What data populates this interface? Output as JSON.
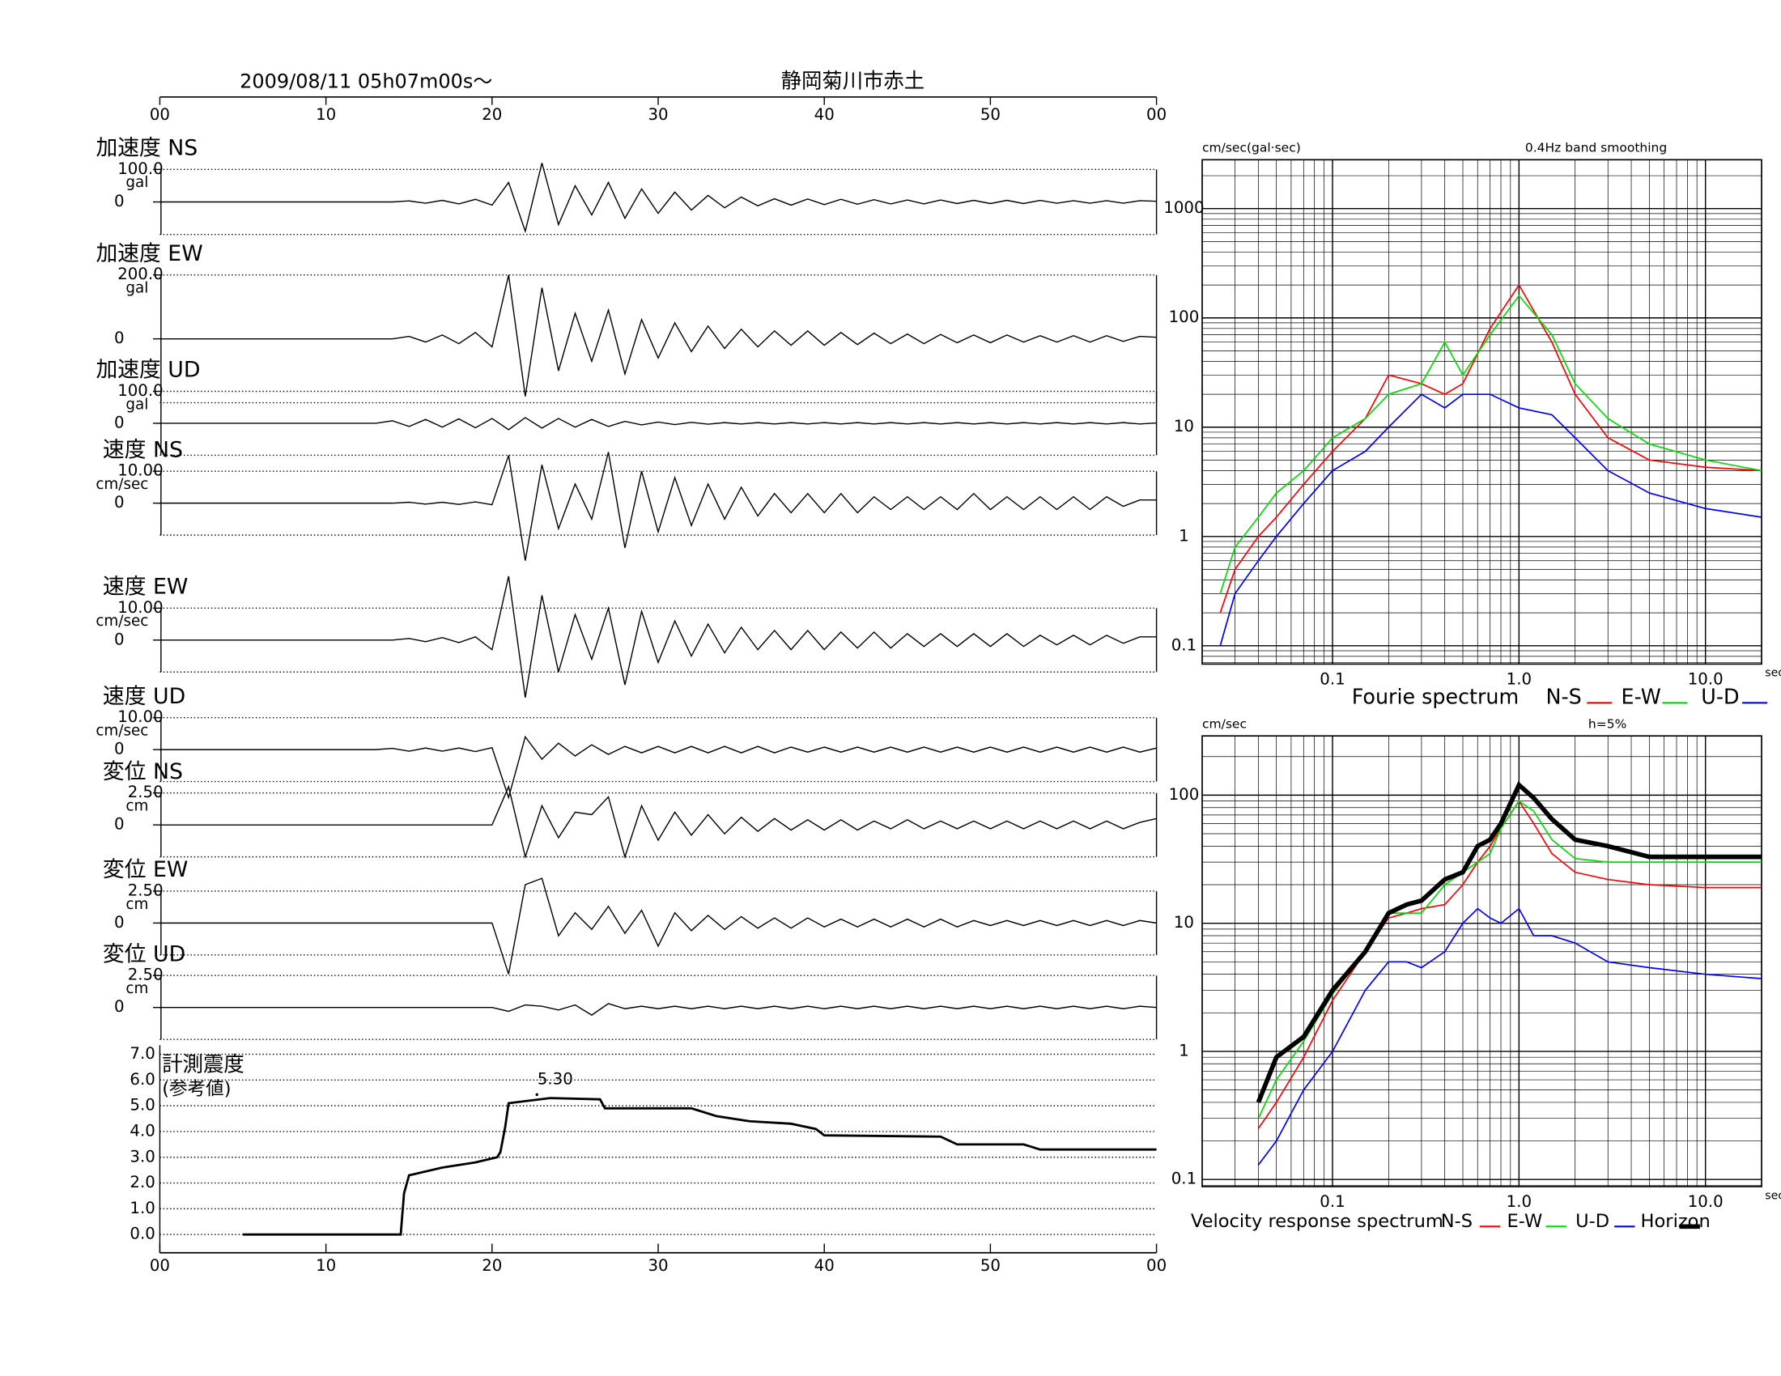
{
  "chart_data": [
    {
      "type": "waveform",
      "title": "2009/08/11  05h07m00s〜",
      "subtitle": "静岡菊川市赤土",
      "xlim": [
        0,
        60
      ],
      "xticks": [
        {
          "value": 0,
          "label": "00"
        },
        10,
        20,
        30,
        40,
        50,
        {
          "value": 60,
          "label": "00"
        }
      ],
      "x": [
        0,
        1,
        2,
        3,
        4,
        5,
        6,
        7,
        8,
        9,
        10,
        11,
        12,
        13,
        14,
        15,
        16,
        17,
        18,
        19,
        20,
        21,
        22,
        23,
        24,
        25,
        26,
        27,
        28,
        29,
        30,
        31,
        32,
        33,
        34,
        35,
        36,
        37,
        38,
        39,
        40,
        41,
        42,
        43,
        44,
        45,
        46,
        47,
        48,
        49,
        50,
        51,
        52,
        53,
        54,
        55,
        56,
        57,
        58,
        59,
        60
      ],
      "series": [
        {
          "name": "加速度 NS",
          "unit": "gal",
          "ylim": [
            -100,
            100
          ],
          "yticks": [
            {
              "value": 100,
              "label": "100.0"
            },
            0
          ],
          "values": [
            0,
            0,
            0,
            0,
            0,
            0,
            0,
            0,
            0,
            0,
            0,
            0,
            0,
            0,
            0,
            3,
            -4,
            5,
            -6,
            8,
            -10,
            60,
            -90,
            120,
            -70,
            50,
            -40,
            60,
            -50,
            40,
            -35,
            30,
            -25,
            20,
            -18,
            15,
            -12,
            10,
            -10,
            9,
            -8,
            8,
            -7,
            7,
            -6,
            6,
            -6,
            6,
            -5,
            5,
            -5,
            5,
            -5,
            5,
            -4,
            4,
            -4,
            4,
            -4,
            4,
            2
          ]
        },
        {
          "name": "加速度 EW",
          "unit": "gal",
          "ylim": [
            -200,
            200
          ],
          "yticks": [
            {
              "value": 200,
              "label": "200.0"
            },
            0
          ],
          "values": [
            0,
            0,
            0,
            0,
            0,
            0,
            0,
            0,
            0,
            0,
            0,
            0,
            0,
            0,
            0,
            8,
            -10,
            12,
            -15,
            20,
            -25,
            200,
            -180,
            160,
            -100,
            80,
            -70,
            90,
            -110,
            60,
            -60,
            50,
            -40,
            40,
            -30,
            30,
            -25,
            25,
            -20,
            25,
            -20,
            20,
            -18,
            18,
            -15,
            15,
            -15,
            14,
            -12,
            12,
            -12,
            12,
            -10,
            10,
            -10,
            10,
            -10,
            10,
            -8,
            8,
            5
          ]
        },
        {
          "name": "加速度 UD",
          "unit": "gal",
          "ylim": [
            -100,
            100
          ],
          "yticks": [
            {
              "value": 100,
              "label": "100.0"
            },
            0
          ],
          "values": [
            0,
            0,
            0,
            0,
            0,
            0,
            0,
            0,
            0,
            0,
            0,
            0,
            0,
            0,
            8,
            -10,
            12,
            -12,
            14,
            -14,
            15,
            -20,
            18,
            -15,
            15,
            -12,
            12,
            -10,
            6,
            -5,
            4,
            -4,
            3,
            -3,
            2,
            -2,
            2,
            -2,
            2,
            -2,
            2,
            -2,
            2,
            -2,
            2,
            -2,
            2,
            -2,
            2,
            -2,
            2,
            -2,
            2,
            -2,
            2,
            -2,
            2,
            -2,
            2,
            -2,
            1
          ]
        },
        {
          "name": "速度 NS",
          "unit": "cm/sec",
          "ylim": [
            -10,
            10
          ],
          "yticks": [
            {
              "value": 10,
              "label": "10.00"
            },
            0
          ],
          "values": [
            0,
            0,
            0,
            0,
            0,
            0,
            0,
            0,
            0,
            0,
            0,
            0,
            0,
            0,
            0,
            0.3,
            -0.3,
            0.3,
            -0.4,
            0.4,
            -0.5,
            15,
            -18,
            12,
            -8,
            6,
            -5,
            16,
            -14,
            10,
            -9,
            8,
            -7,
            6,
            -5,
            5,
            -4,
            3,
            -3,
            3,
            -3,
            3,
            -3,
            2,
            -2,
            2,
            -2,
            2,
            -2,
            3,
            -2,
            2,
            -2,
            2,
            -2,
            2,
            -2,
            2,
            -1,
            1,
            1
          ]
        },
        {
          "name": "速度 EW",
          "unit": "cm/sec",
          "ylim": [
            -10,
            10
          ],
          "yticks": [
            {
              "value": 10,
              "label": "10.00"
            },
            0
          ],
          "values": [
            0,
            0,
            0,
            0,
            0,
            0,
            0,
            0,
            0,
            0,
            0,
            0,
            0,
            0,
            0,
            0.5,
            -0.5,
            0.8,
            -0.8,
            1,
            -3,
            20,
            -18,
            14,
            -10,
            8,
            -6,
            10,
            -14,
            9,
            -7,
            6,
            -5,
            5,
            -4,
            4,
            -3,
            3,
            -3,
            3,
            -3,
            2.5,
            -2.5,
            2.5,
            -2.5,
            2,
            -2,
            2,
            -2,
            2,
            -2,
            2,
            -2,
            1.5,
            -1.5,
            1.5,
            -1.5,
            1.5,
            -1,
            1,
            1
          ]
        },
        {
          "name": "速度 UD",
          "unit": "cm/sec",
          "ylim": [
            -10,
            10
          ],
          "yticks": [
            {
              "value": 10,
              "label": "10.00"
            },
            0
          ],
          "values": [
            0,
            0,
            0,
            0,
            0,
            0,
            0,
            0,
            0,
            0,
            0,
            0,
            0,
            0,
            0.4,
            -0.5,
            0.5,
            -0.5,
            0.5,
            -0.6,
            0.6,
            -15,
            4,
            -3,
            2,
            -2,
            1.5,
            -1.5,
            1,
            -1,
            1,
            -1,
            1,
            -1,
            1,
            -1,
            1,
            -1,
            0.8,
            -0.8,
            0.8,
            -0.8,
            0.8,
            -0.8,
            0.8,
            -0.8,
            0.8,
            -0.8,
            0.8,
            -0.8,
            0.8,
            -0.8,
            0.8,
            -0.8,
            0.8,
            -0.8,
            0.8,
            -0.8,
            0.8,
            -0.8,
            0.5
          ]
        },
        {
          "name": "変位 NS",
          "unit": "cm",
          "ylim": [
            -2.5,
            2.5
          ],
          "yticks": [
            {
              "value": 2.5,
              "label": "2.50"
            },
            0
          ],
          "values": [
            0,
            0,
            0,
            0,
            0,
            0,
            0,
            0,
            0,
            0,
            0,
            0,
            0,
            0,
            0,
            0,
            0,
            0,
            0,
            0,
            0,
            3,
            -2.5,
            1.5,
            -1,
            1,
            0.8,
            2.2,
            -2.5,
            1.5,
            -1.2,
            1,
            -0.8,
            0.8,
            -0.7,
            0.6,
            -0.5,
            0.5,
            -0.4,
            0.4,
            -0.4,
            0.4,
            -0.4,
            0.3,
            -0.3,
            0.4,
            -0.3,
            0.3,
            -0.3,
            0.3,
            -0.3,
            0.3,
            -0.3,
            0.3,
            -0.3,
            0.3,
            -0.3,
            0.3,
            -0.3,
            0.2,
            0.5
          ]
        },
        {
          "name": "変位 EW",
          "unit": "cm",
          "ylim": [
            -2.5,
            2.5
          ],
          "yticks": [
            {
              "value": 2.5,
              "label": "2.50"
            },
            0
          ],
          "values": [
            0,
            0,
            0,
            0,
            0,
            0,
            0,
            0,
            0,
            0,
            0,
            0,
            0,
            0,
            0,
            0,
            0,
            0,
            0,
            0,
            0,
            -4,
            3,
            3.5,
            -1,
            0.8,
            -0.5,
            1.3,
            -0.8,
            1,
            -1.8,
            0.8,
            -0.6,
            0.6,
            -0.5,
            0.5,
            -0.4,
            0.4,
            -0.4,
            0.4,
            -0.3,
            0.3,
            -0.3,
            0.3,
            -0.3,
            0.3,
            -0.3,
            0.3,
            -0.3,
            0.2,
            -0.2,
            0.2,
            -0.2,
            0.2,
            -0.2,
            0.2,
            -0.2,
            0.2,
            -0.2,
            0.2,
            0
          ]
        },
        {
          "name": "変位 UD",
          "unit": "cm",
          "ylim": [
            -2.5,
            2.5
          ],
          "yticks": [
            {
              "value": 2.5,
              "label": "2.50"
            },
            0
          ],
          "values": [
            0,
            0,
            0,
            0,
            0,
            0,
            0,
            0,
            0,
            0,
            0,
            0,
            0,
            0,
            0,
            0,
            0,
            0,
            0,
            0,
            0,
            -0.3,
            0.2,
            0.1,
            -0.2,
            0.2,
            -0.6,
            0.3,
            -0.1,
            0.1,
            -0.1,
            0.1,
            -0.1,
            0.1,
            -0.1,
            0.1,
            -0.1,
            0.1,
            -0.1,
            0.1,
            -0.1,
            0.1,
            -0.1,
            0.1,
            -0.1,
            0.1,
            -0.1,
            0.1,
            -0.1,
            0.1,
            -0.1,
            0.1,
            -0.1,
            0.1,
            -0.1,
            0.1,
            -0.1,
            0.1,
            -0.1,
            0.1,
            0
          ]
        }
      ]
    },
    {
      "type": "line",
      "title": "計測震度",
      "subtitle": "(参考値)",
      "xlim": [
        0,
        60
      ],
      "xticks": [
        {
          "value": 0,
          "label": "00"
        },
        10,
        20,
        30,
        40,
        50,
        {
          "value": 60,
          "label": "00"
        }
      ],
      "ylim": [
        0,
        7
      ],
      "yticks": [
        {
          "value": 0,
          "label": "0.0"
        },
        {
          "value": 1,
          "label": "1.0"
        },
        {
          "value": 2,
          "label": "2.0"
        },
        {
          "value": 3,
          "label": "3.0"
        },
        {
          "value": 4,
          "label": "4.0"
        },
        {
          "value": 5,
          "label": "5.0"
        },
        {
          "value": 6,
          "label": "6.0"
        },
        {
          "value": 7,
          "label": "7.0"
        }
      ],
      "grid": true,
      "x": [
        5,
        14.5,
        14.7,
        15,
        17,
        19,
        20.3,
        20.5,
        20.8,
        21,
        23.5,
        26.5,
        26.8,
        32,
        33.5,
        35.5,
        38,
        39.5,
        40,
        47,
        48,
        52,
        53,
        60
      ],
      "values": [
        0,
        0,
        1.6,
        2.3,
        2.6,
        2.8,
        3.0,
        3.2,
        4.2,
        5.1,
        5.3,
        5.25,
        4.9,
        4.9,
        4.6,
        4.4,
        4.3,
        4.1,
        3.85,
        3.8,
        3.5,
        3.5,
        3.3,
        3.3
      ],
      "annotations": [
        {
          "x": 22.7,
          "value": 5.3,
          "label": "5.30"
        }
      ]
    },
    {
      "type": "log-line",
      "title": "Fourie spectrum",
      "y_label": "cm/sec(gal·sec)",
      "note": "0.4Hz band smoothing",
      "x_label": "sec",
      "xlim": [
        0.02,
        20
      ],
      "ylim": [
        0.068,
        2800
      ],
      "xticks": [
        0.1,
        {
          "value": 1,
          "label": "1.0"
        },
        {
          "value": 10,
          "label": "10.0"
        }
      ],
      "yticks": [
        0.1,
        1,
        10,
        100,
        1000
      ],
      "grid": true,
      "x": [
        0.025,
        0.03,
        0.04,
        0.05,
        0.07,
        0.1,
        0.15,
        0.2,
        0.3,
        0.4,
        0.5,
        0.7,
        1.0,
        1.5,
        2,
        3,
        5,
        10,
        20
      ],
      "series": [
        {
          "name": "N-S",
          "color": "#ff0000",
          "values": [
            0.2,
            0.5,
            1,
            1.5,
            3,
            6,
            12,
            30,
            25,
            20,
            25,
            80,
            200,
            60,
            20,
            8,
            5,
            4.3,
            4
          ]
        },
        {
          "name": "E-W",
          "color": "#00dd00",
          "values": [
            0.3,
            0.8,
            1.5,
            2.5,
            4,
            8,
            12,
            20,
            25,
            60,
            30,
            70,
            160,
            70,
            25,
            12,
            7,
            5,
            4
          ]
        },
        {
          "name": "U-D",
          "color": "#0000ff",
          "values": [
            0.1,
            0.3,
            0.6,
            1,
            2,
            4,
            6,
            10,
            20,
            15,
            20,
            20,
            15,
            13,
            8,
            4,
            2.5,
            1.8,
            1.5
          ]
        }
      ]
    },
    {
      "type": "log-line",
      "title": "Velocity response spectrum",
      "y_label": "cm/sec",
      "note": "h=5%",
      "x_label": "sec",
      "xlim": [
        0.02,
        20
      ],
      "ylim": [
        0.088,
        290
      ],
      "xticks": [
        0.1,
        {
          "value": 1,
          "label": "1.0"
        },
        {
          "value": 10,
          "label": "10.0"
        }
      ],
      "yticks": [
        0.1,
        1,
        10,
        100
      ],
      "grid": true,
      "x": [
        0.04,
        0.05,
        0.07,
        0.1,
        0.15,
        0.2,
        0.25,
        0.3,
        0.4,
        0.5,
        0.6,
        0.7,
        0.8,
        1.0,
        1.2,
        1.5,
        2,
        3,
        5,
        10,
        20
      ],
      "series": [
        {
          "name": "N-S",
          "color": "#ff0000",
          "values": [
            0.25,
            0.4,
            0.9,
            2.5,
            6,
            11,
            12,
            13,
            14,
            20,
            30,
            40,
            55,
            90,
            60,
            35,
            25,
            22,
            20,
            19,
            19
          ]
        },
        {
          "name": "E-W",
          "color": "#00dd00",
          "values": [
            0.3,
            0.6,
            1.2,
            2.8,
            6,
            12,
            12,
            12,
            20,
            25,
            30,
            35,
            55,
            90,
            75,
            45,
            32,
            30,
            30,
            30,
            30
          ]
        },
        {
          "name": "U-D",
          "color": "#0000ff",
          "values": [
            0.13,
            0.2,
            0.5,
            1,
            3,
            5,
            5,
            4.5,
            6,
            10,
            13,
            11,
            10,
            13,
            8,
            8,
            7,
            5,
            4.5,
            4,
            3.7
          ]
        },
        {
          "name": "Horizon",
          "color": "#000000",
          "values": [
            0.4,
            0.9,
            1.3,
            3,
            6,
            12,
            14,
            15,
            22,
            25,
            40,
            45,
            60,
            120,
            95,
            65,
            45,
            40,
            33,
            33,
            33
          ]
        }
      ]
    }
  ]
}
